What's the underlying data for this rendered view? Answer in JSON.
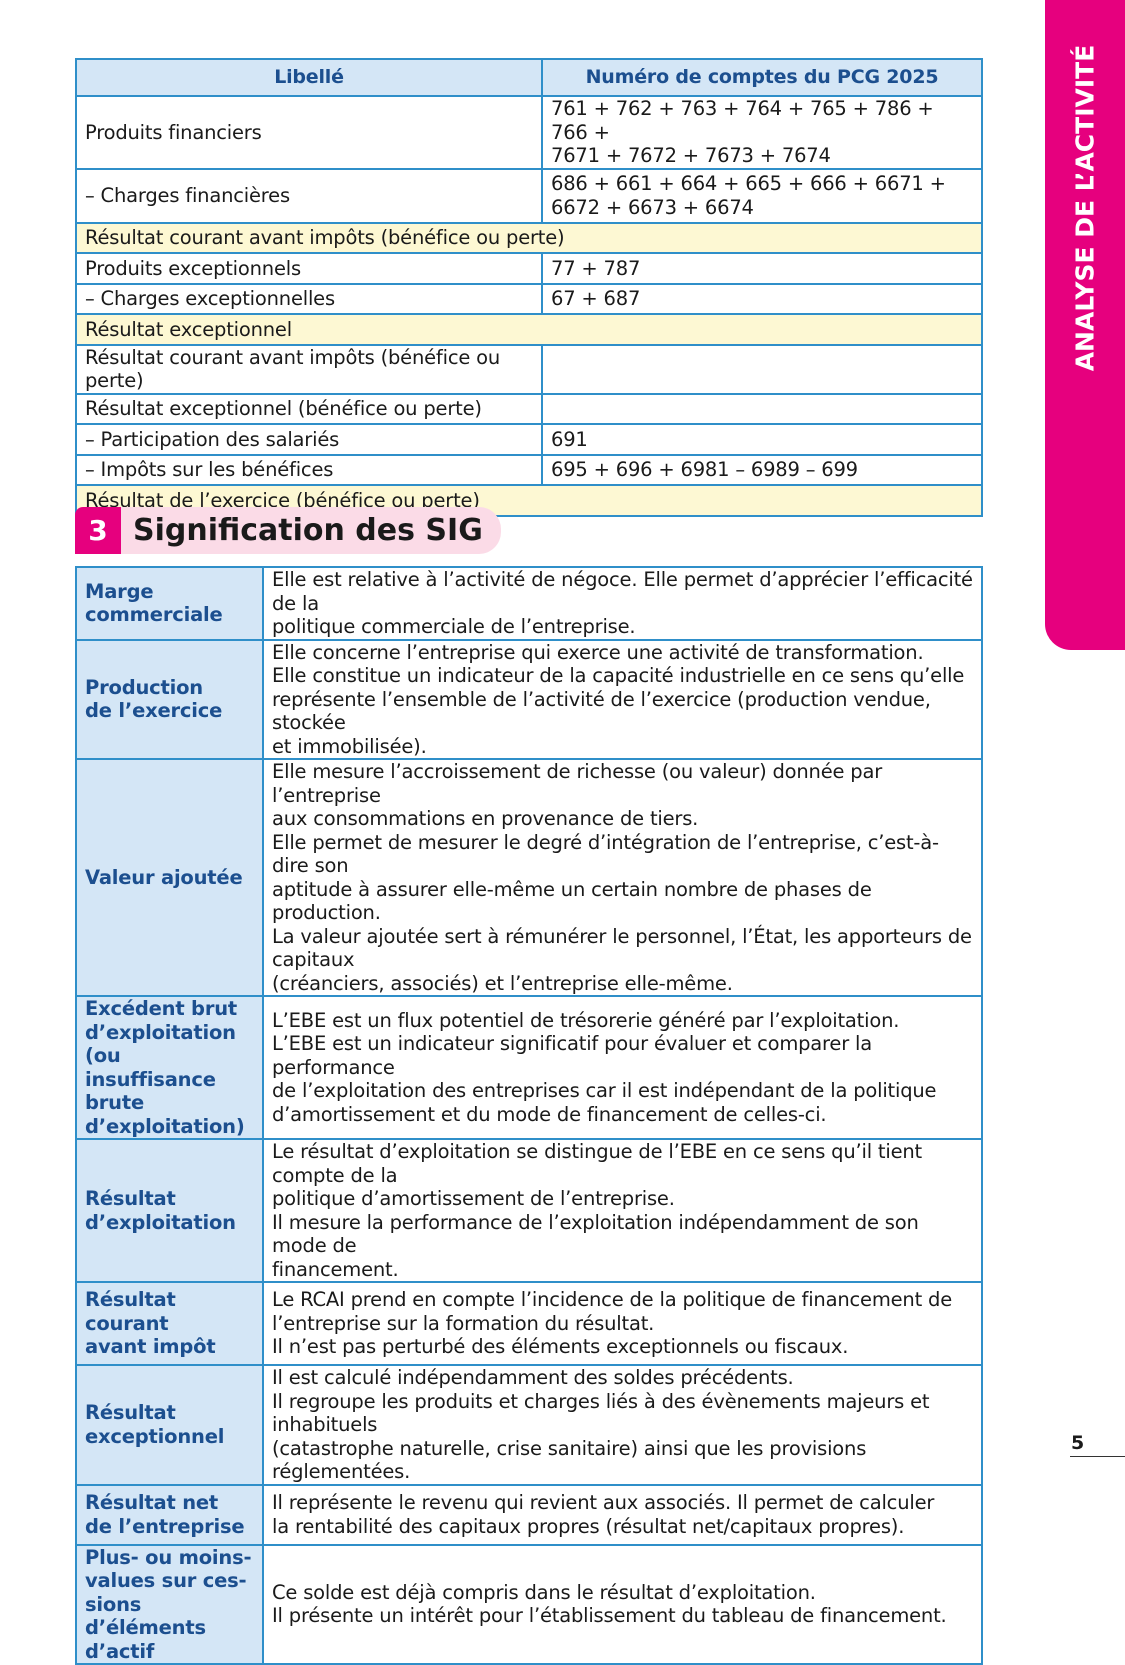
{
  "side_tab": "ANALYSE DE L’ACTIVITÉ",
  "page_number": "5",
  "table1": {
    "headers": [
      "Libellé",
      "Numéro de comptes du PCG 2025"
    ],
    "rows": [
      {
        "label": "Produits financiers",
        "accounts": "761 + 762 + 763 + 764 + 765 + 786 + 766 +\n7671 + 7672 + 7673 + 7674"
      },
      {
        "label": "– Charges financières",
        "accounts": "686 + 661 + 664 + 665 + 666 + 6671 +\n6672 + 6673 + 6674"
      },
      {
        "label": "Résultat courant avant impôts (bénéfice ou perte)"
      },
      {
        "label": "Produits exceptionnels",
        "accounts": "77 + 787"
      },
      {
        "label": "– Charges exceptionnelles",
        "accounts": "67 + 687"
      },
      {
        "label": "Résultat exceptionnel"
      },
      {
        "label": "Résultat courant avant impôts (bénéfice ou perte)",
        "accounts": ""
      },
      {
        "label": "Résultat exceptionnel (bénéfice ou perte)",
        "accounts": ""
      },
      {
        "label": "– Participation des salariés",
        "accounts": "691"
      },
      {
        "label": "– Impôts sur les bénéfices",
        "accounts": "695 + 696 + 6981 – 6989 – 699"
      },
      {
        "label": "Résultat de l’exercice (bénéfice ou perte)"
      }
    ]
  },
  "section": {
    "number": "3",
    "title": "Signification des SIG"
  },
  "table2": [
    {
      "term": "Marge\ncommerciale",
      "text": "Elle est relative à l’activité de négoce. Elle permet d’apprécier l’efficacité de la\npolitique commerciale de l’entreprise."
    },
    {
      "term": "Production\nde l’exercice",
      "text": "Elle concerne l’entreprise qui exerce une activité de transformation.\nElle constitue un indicateur de la capacité industrielle en ce sens qu’elle\nreprésente l’ensemble de l’activité de l’exercice (production vendue, stockée\net immobilisée)."
    },
    {
      "term": "Valeur ajoutée",
      "text": "Elle mesure l’accroissement de richesse (ou valeur) donnée par l’entreprise\naux consommations en provenance de tiers.\nElle permet de mesurer le degré d’intégration de l’entreprise, c’est-à-dire son\naptitude à assurer elle-même un certain nombre de phases de production.\nLa valeur ajoutée sert à rémunérer le personnel, l’État, les apporteurs de capitaux\n(créanciers, associés) et l’entreprise elle-même."
    },
    {
      "term": "Excédent brut\nd’exploitation (ou\ninsuffisance brute\nd’exploitation)",
      "text": "L’EBE est un flux potentiel de trésorerie généré par l’exploitation.\nL’EBE est un indicateur significatif pour évaluer et comparer la performance\nde l’exploitation des entreprises car il est indépendant de la politique\nd’amortissement et du mode de financement de celles-ci."
    },
    {
      "term": "Résultat\nd’exploitation",
      "text": "Le résultat d’exploitation se distingue de l’EBE en ce sens qu’il tient compte de la\npolitique d’amortissement de l’entreprise.\nIl mesure la performance de l’exploitation indépendamment de son mode de\nfinancement."
    },
    {
      "term": "Résultat\ncourant\navant impôt",
      "text": "Le RCAI prend en compte l’incidence de la politique de financement de\nl’entreprise sur la formation du résultat.\nIl n’est pas perturbé des éléments exceptionnels ou fiscaux."
    },
    {
      "term": "Résultat\nexceptionnel",
      "text": "Il est calculé indépendamment des soldes précédents.\nIl regroupe les produits et charges liés à des évènements majeurs et inhabituels\n(catastrophe naturelle, crise sanitaire) ainsi que les provisions réglementées."
    },
    {
      "term": "Résultat net\nde l’entreprise",
      "text": "Il représente le revenu qui revient aux associés. Il permet de calculer\nla rentabilité des capitaux propres (résultat net/capitaux propres)."
    },
    {
      "term": "Plus- ou moins-\nvalues sur ces-\nsions d’éléments\nd’actif",
      "text": "Ce solde est déjà compris dans le résultat d’exploitation.\nIl présente un intérêt pour l’établissement du tableau de financement."
    }
  ],
  "colors": {
    "accent": "#e6007e",
    "border": "#2f8fc9",
    "header_bg": "#d4e6f6",
    "subtotal_bg": "#fdf8d3",
    "term_text": "#1c4f8f"
  }
}
